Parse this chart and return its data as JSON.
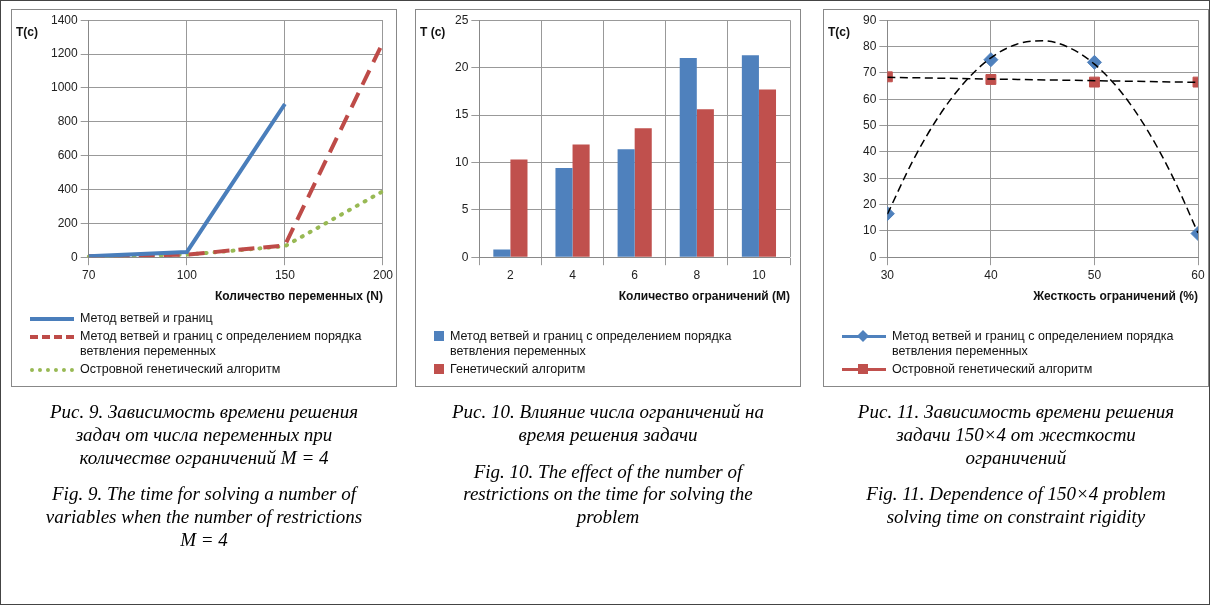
{
  "chart_data": [
    {
      "type": "line",
      "xlabel": "Количество переменных (N)",
      "ylabel": "T(c)",
      "categories": [
        "70",
        "100",
        "150",
        "200"
      ],
      "ylim": [
        0,
        1400
      ],
      "yticks": [
        0,
        200,
        400,
        600,
        800,
        1000,
        1200,
        1400
      ],
      "grid": true,
      "legend": "bottom",
      "series": [
        {
          "name": "Метод ветвей и границ",
          "color": "#4a7ebb",
          "values": [
            5,
            30,
            905,
            null
          ],
          "line_style": "solid"
        },
        {
          "name": "Метод ветвей и границ с определением порядка ветвления переменных",
          "color": "#be4b48",
          "values": [
            5,
            15,
            70,
            1270
          ],
          "line_style": "dashed"
        },
        {
          "name": "Островной генетический алгоритм",
          "color": "#98b954",
          "values": [
            3,
            15,
            65,
            390
          ],
          "line_style": "dotted"
        }
      ],
      "annotations": [
        "Рис. 9. Зависимость времени решения задач от числа переменных при количестве ограничений M = 4",
        "Fig. 9. The time for solving a number of variables when the number of restrictions M = 4"
      ]
    },
    {
      "type": "bar",
      "xlabel": "Количество ограничений (M)",
      "ylabel": "T (c)",
      "categories": [
        "2",
        "4",
        "6",
        "8",
        "10"
      ],
      "ylim": [
        0,
        25
      ],
      "yticks": [
        0,
        5,
        10,
        15,
        20,
        25
      ],
      "grid": true,
      "legend": "bottom",
      "series": [
        {
          "name": "Метод ветвей и границ с определением порядка ветвления переменных",
          "color": "#4f81bd",
          "values": [
            0.8,
            9.4,
            11.4,
            21.0,
            21.3
          ]
        },
        {
          "name": "Генетический алгоритм",
          "color": "#c0504d",
          "values": [
            10.3,
            11.9,
            13.6,
            15.6,
            17.7
          ]
        }
      ],
      "annotations": [
        "Рис. 10. Влияние числа ограничений на время решения задачи",
        "Fig. 10. The effect of the number of restrictions on the time for solving the problem"
      ]
    },
    {
      "type": "scatter",
      "xlabel": "Жесткость ограничений (%)",
      "ylabel": "T(c)",
      "xlim": [
        30,
        60
      ],
      "xticks": [
        30,
        40,
        50,
        60
      ],
      "ylim": [
        0,
        90
      ],
      "yticks": [
        0,
        10,
        20,
        30,
        40,
        50,
        60,
        70,
        80,
        90
      ],
      "grid": true,
      "legend": "bottom",
      "series": [
        {
          "name": "Метод ветвей и границ с определением порядка ветвления переменных",
          "color": "#4f81bd",
          "x": [
            30,
            40,
            50,
            60
          ],
          "values": [
            16.5,
            75,
            74,
            9
          ],
          "marker": "diamond"
        },
        {
          "name": "Островной генетический алгоритм",
          "color": "#c0504d",
          "x": [
            30,
            40,
            50,
            60
          ],
          "values": [
            68.5,
            67.5,
            66.5,
            66.5
          ],
          "marker": "square"
        },
        {
          "type": "line",
          "color": "#000000",
          "line_style": "dashed",
          "x": [
            30,
            32.5,
            35,
            37.5,
            40,
            42.5,
            45,
            47.5,
            50,
            52.5,
            55,
            57.5,
            60
          ],
          "values": [
            16.3,
            36.9,
            53.7,
            66.6,
            75.7,
            80.9,
            82.2,
            79.7,
            73.3,
            63.1,
            49,
            31,
            9.2
          ]
        },
        {
          "type": "line",
          "color": "#000000",
          "line_style": "dashed",
          "x": [
            30,
            60
          ],
          "values": [
            68.3,
            66.4
          ]
        }
      ],
      "annotations": [
        "Рис. 11. Зависимость времени решения задачи 150×4 от жесткости ограничений",
        "Fig. 11. Dependence of 150×4 problem solving time on constraint rigidity"
      ]
    }
  ]
}
